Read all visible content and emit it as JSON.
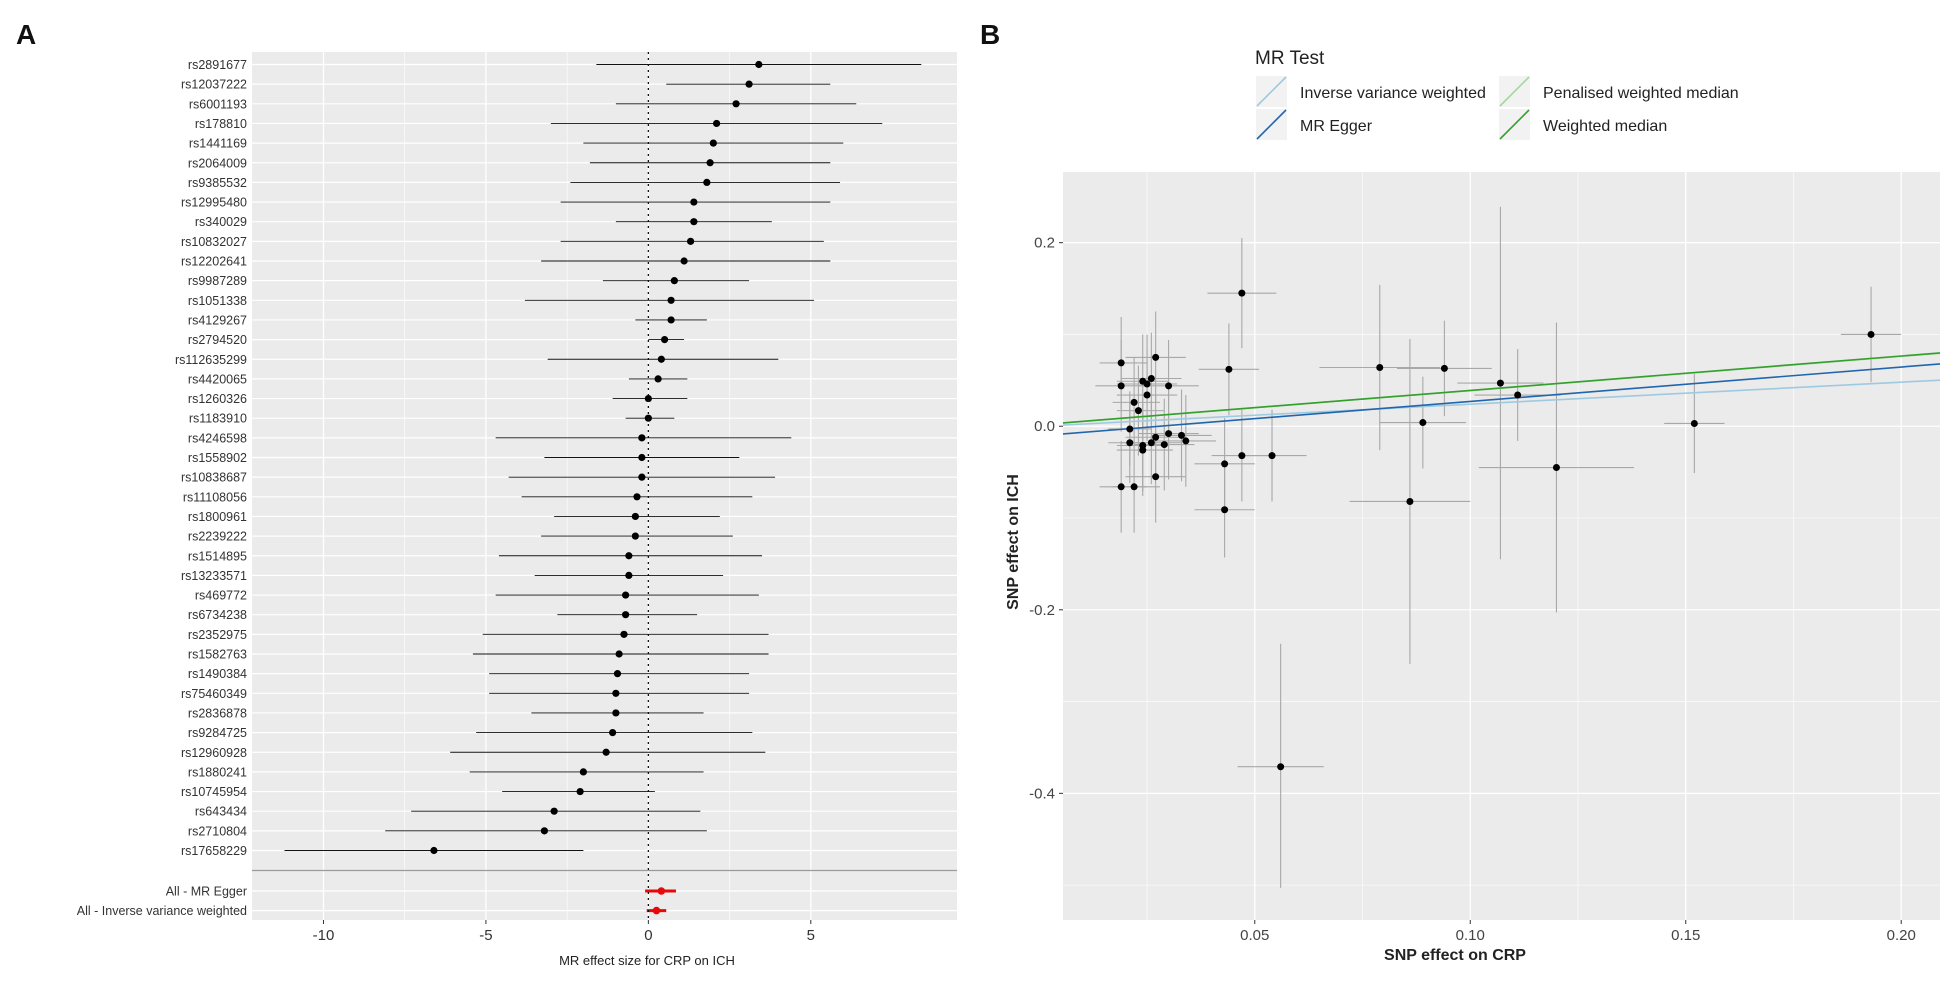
{
  "figure": {
    "panel_a_letter": "A",
    "panel_b_letter": "B"
  },
  "colors": {
    "panel_bg": "#ebebeb",
    "grid": "#ffffff",
    "point": "#000000",
    "summary": "#e8080a",
    "scatter_err": "#a8a8a8",
    "ivw": "#9ecae1",
    "egger": "#2166ac",
    "pwm": "#a1d99b",
    "wm": "#33a02c"
  },
  "chart_data": [
    {
      "type": "forest",
      "title": "",
      "xlabel": "MR effect size for CRP on ICH",
      "ylabel": "",
      "xlim": [
        -12.2,
        9.5
      ],
      "xticks": [
        -10,
        -5,
        0,
        5
      ],
      "reference_line": 0,
      "snps": [
        {
          "label": "rs2891677",
          "est": 3.4,
          "lo": -1.6,
          "hi": 8.4
        },
        {
          "label": "rs12037222",
          "est": 3.1,
          "lo": 0.55,
          "hi": 5.6
        },
        {
          "label": "rs6001193",
          "est": 2.7,
          "lo": -1.0,
          "hi": 6.4
        },
        {
          "label": "rs178810",
          "est": 2.1,
          "lo": -3.0,
          "hi": 7.2
        },
        {
          "label": "rs1441169",
          "est": 2.0,
          "lo": -2.0,
          "hi": 6.0
        },
        {
          "label": "rs2064009",
          "est": 1.9,
          "lo": -1.8,
          "hi": 5.6
        },
        {
          "label": "rs9385532",
          "est": 1.8,
          "lo": -2.4,
          "hi": 5.9
        },
        {
          "label": "rs12995480",
          "est": 1.4,
          "lo": -2.7,
          "hi": 5.6
        },
        {
          "label": "rs340029",
          "est": 1.4,
          "lo": -1.0,
          "hi": 3.8
        },
        {
          "label": "rs10832027",
          "est": 1.3,
          "lo": -2.7,
          "hi": 5.4
        },
        {
          "label": "rs12202641",
          "est": 1.1,
          "lo": -3.3,
          "hi": 5.6
        },
        {
          "label": "rs9987289",
          "est": 0.8,
          "lo": -1.4,
          "hi": 3.1
        },
        {
          "label": "rs1051338",
          "est": 0.7,
          "lo": -3.8,
          "hi": 5.1
        },
        {
          "label": "rs4129267",
          "est": 0.7,
          "lo": -0.4,
          "hi": 1.8
        },
        {
          "label": "rs2794520",
          "est": 0.5,
          "lo": 0.0,
          "hi": 1.1
        },
        {
          "label": "rs112635299",
          "est": 0.4,
          "lo": -3.1,
          "hi": 4.0
        },
        {
          "label": "rs4420065",
          "est": 0.3,
          "lo": -0.6,
          "hi": 1.2
        },
        {
          "label": "rs1260326",
          "est": 0.0,
          "lo": -1.1,
          "hi": 1.2
        },
        {
          "label": "rs1183910",
          "est": 0.0,
          "lo": -0.7,
          "hi": 0.8
        },
        {
          "label": "rs4246598",
          "est": -0.2,
          "lo": -4.7,
          "hi": 4.4
        },
        {
          "label": "rs1558902",
          "est": -0.2,
          "lo": -3.2,
          "hi": 2.8
        },
        {
          "label": "rs10838687",
          "est": -0.2,
          "lo": -4.3,
          "hi": 3.9
        },
        {
          "label": "rs11108056",
          "est": -0.35,
          "lo": -3.9,
          "hi": 3.2
        },
        {
          "label": "rs1800961",
          "est": -0.4,
          "lo": -2.9,
          "hi": 2.2
        },
        {
          "label": "rs2239222",
          "est": -0.4,
          "lo": -3.3,
          "hi": 2.6
        },
        {
          "label": "rs1514895",
          "est": -0.6,
          "lo": -4.6,
          "hi": 3.5
        },
        {
          "label": "rs13233571",
          "est": -0.6,
          "lo": -3.5,
          "hi": 2.3
        },
        {
          "label": "rs469772",
          "est": -0.7,
          "lo": -4.7,
          "hi": 3.4
        },
        {
          "label": "rs6734238",
          "est": -0.7,
          "lo": -2.8,
          "hi": 1.5
        },
        {
          "label": "rs2352975",
          "est": -0.75,
          "lo": -5.1,
          "hi": 3.7
        },
        {
          "label": "rs1582763",
          "est": -0.9,
          "lo": -5.4,
          "hi": 3.7
        },
        {
          "label": "rs1490384",
          "est": -0.95,
          "lo": -4.9,
          "hi": 3.1
        },
        {
          "label": "rs75460349",
          "est": -1.0,
          "lo": -4.9,
          "hi": 3.1
        },
        {
          "label": "rs2836878",
          "est": -1.0,
          "lo": -3.6,
          "hi": 1.7
        },
        {
          "label": "rs9284725",
          "est": -1.1,
          "lo": -5.3,
          "hi": 3.2
        },
        {
          "label": "rs12960928",
          "est": -1.3,
          "lo": -6.1,
          "hi": 3.6
        },
        {
          "label": "rs1880241",
          "est": -2.0,
          "lo": -5.5,
          "hi": 1.7
        },
        {
          "label": "rs10745954",
          "est": -2.1,
          "lo": -4.5,
          "hi": 0.2
        },
        {
          "label": "rs643434",
          "est": -2.9,
          "lo": -7.3,
          "hi": 1.6
        },
        {
          "label": "rs2710804",
          "est": -3.2,
          "lo": -8.1,
          "hi": 1.8
        },
        {
          "label": "rs17658229",
          "est": -6.6,
          "lo": -11.2,
          "hi": -2.0
        }
      ],
      "summaries": [
        {
          "label": "All - MR Egger",
          "est": 0.4,
          "lo": -0.1,
          "hi": 0.85
        },
        {
          "label": "All - Inverse variance weighted",
          "est": 0.25,
          "lo": -0.05,
          "hi": 0.55
        }
      ]
    },
    {
      "type": "scatter",
      "title": "",
      "xlabel": "SNP effect on CRP",
      "ylabel": "SNP effect on ICH",
      "xlim": [
        0.0055,
        0.209
      ],
      "ylim": [
        -0.538,
        0.277
      ],
      "xticks": [
        0.05,
        0.1,
        0.15,
        0.2
      ],
      "xtick_labels": [
        "0.05",
        "0.10",
        "0.15",
        "0.20"
      ],
      "yticks": [
        -0.4,
        -0.2,
        0.0,
        0.2
      ],
      "ytick_labels": [
        "-0.4",
        "-0.2",
        "0.0",
        "0.2"
      ],
      "legend": {
        "title": "MR Test",
        "position": "top",
        "entries": [
          {
            "label": "Inverse variance weighted",
            "key": "ivw"
          },
          {
            "label": "MR Egger",
            "key": "egger"
          },
          {
            "label": "Penalised weighted median",
            "key": "pwm"
          },
          {
            "label": "Weighted median",
            "key": "wm"
          }
        ]
      },
      "lines": [
        {
          "key": "ivw",
          "intercept": 0.0,
          "slope": 0.24
        },
        {
          "key": "egger",
          "intercept": -0.0105,
          "slope": 0.375
        },
        {
          "key": "pwm",
          "intercept": 0.0015,
          "slope": 0.373
        },
        {
          "key": "wm",
          "intercept": 0.0015,
          "slope": 0.375
        }
      ],
      "points": [
        {
          "x": 0.019,
          "y": 0.069,
          "xlo": 0.014,
          "xhi": 0.025,
          "ylo": 0.019,
          "yhi": 0.119
        },
        {
          "x": 0.019,
          "y": 0.044,
          "xlo": 0.013,
          "xhi": 0.025,
          "ylo": -0.006,
          "yhi": 0.094
        },
        {
          "x": 0.021,
          "y": -0.003,
          "xlo": 0.016,
          "xhi": 0.026,
          "ylo": -0.043,
          "yhi": 0.038
        },
        {
          "x": 0.021,
          "y": -0.018,
          "xlo": 0.016,
          "xhi": 0.026,
          "ylo": -0.062,
          "yhi": 0.026
        },
        {
          "x": 0.022,
          "y": 0.026,
          "xlo": 0.017,
          "xhi": 0.028,
          "ylo": -0.023,
          "yhi": 0.075
        },
        {
          "x": 0.023,
          "y": 0.017,
          "xlo": 0.018,
          "xhi": 0.029,
          "ylo": -0.032,
          "yhi": 0.066
        },
        {
          "x": 0.024,
          "y": 0.049,
          "xlo": 0.018,
          "xhi": 0.03,
          "ylo": -0.002,
          "yhi": 0.1
        },
        {
          "x": 0.024,
          "y": -0.021,
          "xlo": 0.018,
          "xhi": 0.03,
          "ylo": -0.071,
          "yhi": 0.03
        },
        {
          "x": 0.024,
          "y": -0.026,
          "xlo": 0.018,
          "xhi": 0.031,
          "ylo": -0.076,
          "yhi": 0.024
        },
        {
          "x": 0.025,
          "y": 0.046,
          "xlo": 0.018,
          "xhi": 0.032,
          "ylo": -0.008,
          "yhi": 0.1
        },
        {
          "x": 0.025,
          "y": 0.034,
          "xlo": 0.018,
          "xhi": 0.032,
          "ylo": -0.016,
          "yhi": 0.084
        },
        {
          "x": 0.026,
          "y": -0.018,
          "xlo": 0.019,
          "xhi": 0.033,
          "ylo": -0.063,
          "yhi": 0.028
        },
        {
          "x": 0.026,
          "y": 0.052,
          "xlo": 0.019,
          "xhi": 0.033,
          "ylo": 0.002,
          "yhi": 0.102
        },
        {
          "x": 0.027,
          "y": -0.012,
          "xlo": 0.02,
          "xhi": 0.034,
          "ylo": -0.058,
          "yhi": 0.034
        },
        {
          "x": 0.027,
          "y": 0.075,
          "xlo": 0.02,
          "xhi": 0.034,
          "ylo": 0.025,
          "yhi": 0.125
        },
        {
          "x": 0.027,
          "y": -0.055,
          "xlo": 0.02,
          "xhi": 0.034,
          "ylo": -0.105,
          "yhi": -0.005
        },
        {
          "x": 0.03,
          "y": 0.044,
          "xlo": 0.023,
          "xhi": 0.037,
          "ylo": -0.006,
          "yhi": 0.094
        },
        {
          "x": 0.03,
          "y": -0.008,
          "xlo": 0.023,
          "xhi": 0.037,
          "ylo": -0.058,
          "yhi": 0.042
        },
        {
          "x": 0.029,
          "y": -0.02,
          "xlo": 0.022,
          "xhi": 0.036,
          "ylo": -0.07,
          "yhi": 0.03
        },
        {
          "x": 0.033,
          "y": -0.01,
          "xlo": 0.026,
          "xhi": 0.04,
          "ylo": -0.06,
          "yhi": 0.04
        },
        {
          "x": 0.034,
          "y": -0.016,
          "xlo": 0.027,
          "xhi": 0.041,
          "ylo": -0.066,
          "yhi": 0.034
        },
        {
          "x": 0.019,
          "y": -0.066,
          "xlo": 0.014,
          "xhi": 0.025,
          "ylo": -0.116,
          "yhi": -0.016
        },
        {
          "x": 0.022,
          "y": -0.066,
          "xlo": 0.017,
          "xhi": 0.028,
          "ylo": -0.116,
          "yhi": -0.016
        },
        {
          "x": 0.047,
          "y": 0.145,
          "xlo": 0.039,
          "xhi": 0.055,
          "ylo": 0.085,
          "yhi": 0.205
        },
        {
          "x": 0.044,
          "y": 0.062,
          "xlo": 0.037,
          "xhi": 0.051,
          "ylo": 0.012,
          "yhi": 0.112
        },
        {
          "x": 0.043,
          "y": -0.041,
          "xlo": 0.036,
          "xhi": 0.05,
          "ylo": -0.091,
          "yhi": 0.009
        },
        {
          "x": 0.047,
          "y": -0.032,
          "xlo": 0.04,
          "xhi": 0.054,
          "ylo": -0.082,
          "yhi": 0.018
        },
        {
          "x": 0.054,
          "y": -0.032,
          "xlo": 0.047,
          "xhi": 0.062,
          "ylo": -0.082,
          "yhi": 0.018
        },
        {
          "x": 0.043,
          "y": -0.091,
          "xlo": 0.036,
          "xhi": 0.05,
          "ylo": -0.143,
          "yhi": -0.039
        },
        {
          "x": 0.056,
          "y": -0.371,
          "xlo": 0.046,
          "xhi": 0.066,
          "ylo": -0.503,
          "yhi": -0.237
        },
        {
          "x": 0.079,
          "y": 0.064,
          "xlo": 0.065,
          "xhi": 0.093,
          "ylo": -0.026,
          "yhi": 0.154
        },
        {
          "x": 0.094,
          "y": 0.063,
          "xlo": 0.083,
          "xhi": 0.105,
          "ylo": 0.011,
          "yhi": 0.115
        },
        {
          "x": 0.089,
          "y": 0.004,
          "xlo": 0.079,
          "xhi": 0.099,
          "ylo": -0.046,
          "yhi": 0.054
        },
        {
          "x": 0.086,
          "y": -0.082,
          "xlo": 0.072,
          "xhi": 0.1,
          "ylo": -0.259,
          "yhi": 0.095
        },
        {
          "x": 0.107,
          "y": 0.047,
          "xlo": 0.097,
          "xhi": 0.117,
          "ylo": -0.145,
          "yhi": 0.239
        },
        {
          "x": 0.111,
          "y": 0.034,
          "xlo": 0.101,
          "xhi": 0.121,
          "ylo": -0.016,
          "yhi": 0.084
        },
        {
          "x": 0.12,
          "y": -0.045,
          "xlo": 0.102,
          "xhi": 0.138,
          "ylo": -0.203,
          "yhi": 0.113
        },
        {
          "x": 0.152,
          "y": 0.003,
          "xlo": 0.145,
          "xhi": 0.159,
          "ylo": -0.051,
          "yhi": 0.057
        },
        {
          "x": 0.193,
          "y": 0.1,
          "xlo": 0.186,
          "xhi": 0.2,
          "ylo": 0.048,
          "yhi": 0.152
        }
      ]
    }
  ]
}
